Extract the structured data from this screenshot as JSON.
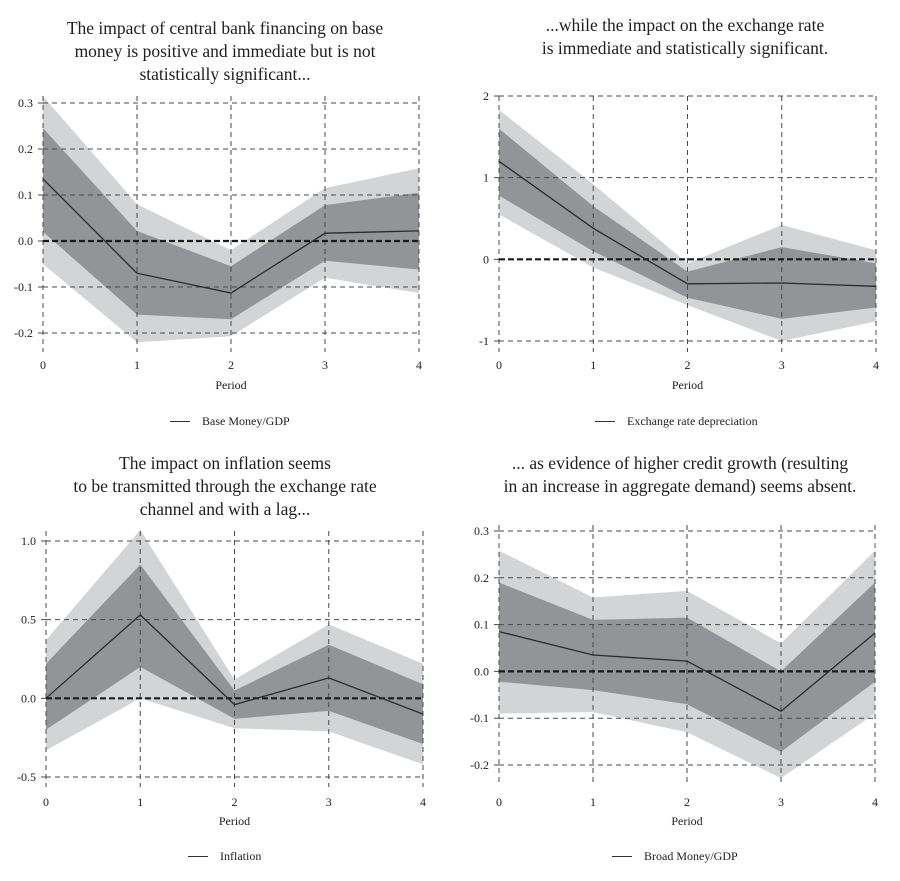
{
  "chart_data": [
    {
      "type": "line",
      "title": "The impact of central bank financing on base money is positive and immediate but is not statistically significant...",
      "title_lines": [
        "The impact of central bank financing on base",
        "money is positive and immediate but is not",
        "statistically significant..."
      ],
      "xlabel": "Period",
      "ylabel": "",
      "x": [
        0,
        1,
        2,
        3,
        4
      ],
      "xticks": [
        "0",
        "1",
        "2",
        "3",
        "4"
      ],
      "ylim": [
        -0.2,
        0.3
      ],
      "yticks": [
        0.3,
        0.2,
        0.1,
        0.0,
        -0.1,
        -0.2
      ],
      "ytick_labels": [
        "0.3",
        "0.2",
        "0.1",
        "0.0",
        "-0.1",
        "-0.2"
      ],
      "grid": true,
      "legend": {
        "label": "Base Money/GDP",
        "placement": "bottom-center"
      },
      "series": [
        {
          "name": "Base Money/GDP",
          "values": [
            0.135,
            -0.07,
            -0.113,
            0.017,
            0.022
          ]
        }
      ],
      "bands": {
        "outer": {
          "upper": [
            0.315,
            0.08,
            -0.02,
            0.115,
            0.158
          ],
          "lower": [
            -0.05,
            -0.22,
            -0.207,
            -0.08,
            -0.113
          ]
        },
        "inner": {
          "upper": [
            0.245,
            0.022,
            -0.055,
            0.078,
            0.105
          ],
          "lower": [
            0.02,
            -0.16,
            -0.17,
            -0.043,
            -0.062
          ]
        }
      },
      "zero_line": 0
    },
    {
      "type": "line",
      "title": "...while the impact on the exchange rate is immediate and statistically significant.",
      "title_lines": [
        "...while the impact on the exchange rate",
        "is immediate and statistically significant."
      ],
      "xlabel": "Period",
      "ylabel": "",
      "x": [
        0,
        1,
        2,
        3,
        4
      ],
      "xticks": [
        "0",
        "1",
        "2",
        "3",
        "4"
      ],
      "ylim": [
        -1,
        2
      ],
      "yticks": [
        2,
        1,
        0,
        -1
      ],
      "ytick_labels": [
        "2",
        "1",
        "0",
        "-1"
      ],
      "grid": true,
      "legend": {
        "label": "Exchange rate depreciation",
        "placement": "bottom-center"
      },
      "series": [
        {
          "name": "Exchange rate depreciation",
          "values": [
            1.2,
            0.38,
            -0.3,
            -0.29,
            -0.33
          ]
        }
      ],
      "bands": {
        "outer": {
          "upper": [
            1.83,
            0.92,
            -0.05,
            0.42,
            0.11
          ],
          "lower": [
            0.55,
            -0.1,
            -0.56,
            -1.0,
            -0.76
          ]
        },
        "inner": {
          "upper": [
            1.6,
            0.65,
            -0.15,
            0.15,
            -0.05
          ],
          "lower": [
            0.78,
            0.1,
            -0.47,
            -0.73,
            -0.59
          ]
        }
      },
      "zero_line": 0
    },
    {
      "type": "line",
      "title": "The impact on inflation seems to be transmitted through the exchange rate channel and with a lag...",
      "title_lines": [
        "The impact on inflation seems",
        "to be transmitted through the exchange rate",
        "channel and with a lag..."
      ],
      "xlabel": "Period",
      "ylabel": "",
      "x": [
        0,
        1,
        2,
        3,
        4
      ],
      "xticks": [
        "0",
        "1",
        "2",
        "3",
        "4"
      ],
      "ylim": [
        -0.5,
        1.0
      ],
      "yticks": [
        1.0,
        0.5,
        0.0,
        -0.5
      ],
      "ytick_labels": [
        "1.0",
        "0.5",
        "0.0",
        "-0.5"
      ],
      "grid": true,
      "legend": {
        "label": "Inflation",
        "placement": "bottom-center"
      },
      "series": [
        {
          "name": "Inflation",
          "values": [
            0.0,
            0.53,
            -0.04,
            0.13,
            -0.1
          ]
        }
      ],
      "bands": {
        "outer": {
          "upper": [
            0.37,
            1.07,
            0.12,
            0.47,
            0.22
          ],
          "lower": [
            -0.33,
            0.0,
            -0.19,
            -0.21,
            -0.42
          ]
        },
        "inner": {
          "upper": [
            0.22,
            0.85,
            0.05,
            0.34,
            0.09
          ],
          "lower": [
            -0.2,
            0.2,
            -0.13,
            -0.08,
            -0.29
          ]
        }
      },
      "zero_line": 0
    },
    {
      "type": "line",
      "title": "... as evidence of higher credit growth (resulting in an increase in aggregate demand) seems absent.",
      "title_lines": [
        "... as evidence of higher credit growth (resulting",
        "in an increase in aggregate demand) seems absent."
      ],
      "xlabel": "Period",
      "ylabel": "",
      "x": [
        0,
        1,
        2,
        3,
        4
      ],
      "xticks": [
        "0",
        "1",
        "2",
        "3",
        "4"
      ],
      "ylim": [
        -0.2,
        0.3
      ],
      "yticks": [
        0.3,
        0.2,
        0.1,
        0.0,
        -0.1,
        -0.2
      ],
      "ytick_labels": [
        "0.3",
        "0.2",
        "0.1",
        "0.0",
        "-0.1",
        "-0.2"
      ],
      "grid": true,
      "legend": {
        "label": "Broad Money/GDP",
        "placement": "bottom-center"
      },
      "series": [
        {
          "name": "Broad Money/GDP",
          "values": [
            0.085,
            0.035,
            0.022,
            -0.085,
            0.082
          ]
        }
      ],
      "bands": {
        "outer": {
          "upper": [
            0.258,
            0.158,
            0.172,
            0.06,
            0.258
          ],
          "lower": [
            -0.09,
            -0.087,
            -0.13,
            -0.228,
            -0.09
          ]
        },
        "inner": {
          "upper": [
            0.19,
            0.11,
            0.115,
            0.0,
            0.19
          ],
          "lower": [
            -0.022,
            -0.04,
            -0.07,
            -0.172,
            -0.022
          ]
        }
      },
      "zero_line": 0
    }
  ],
  "colors": {
    "outer_band": "#d3d4d6",
    "inner_band": "#939497",
    "line": "#2b2b2b",
    "grid": "#4a4a4a",
    "zero_line": "#1a1a1a"
  }
}
